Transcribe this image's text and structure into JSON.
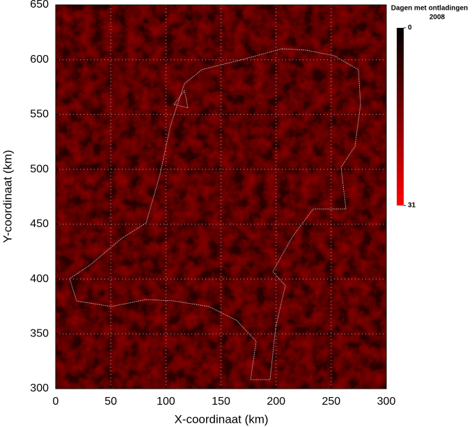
{
  "chart_data": {
    "type": "heatmap",
    "title": "Dagen met ontladingen",
    "subtitle": "2008",
    "x_label": "X-coordinaat (km)",
    "y_label": "Y-coordinaat (km)",
    "xlim": [
      0,
      300
    ],
    "ylim": [
      300,
      650
    ],
    "xticks": [
      0,
      50,
      100,
      150,
      200,
      250,
      300
    ],
    "yticks": [
      300,
      350,
      400,
      450,
      500,
      550,
      600,
      650
    ],
    "grid": true,
    "colorbar": {
      "lim": [
        0,
        31
      ],
      "ticks": [
        0,
        31
      ],
      "colors": [
        "#000000",
        "#ff0000"
      ]
    }
  }
}
